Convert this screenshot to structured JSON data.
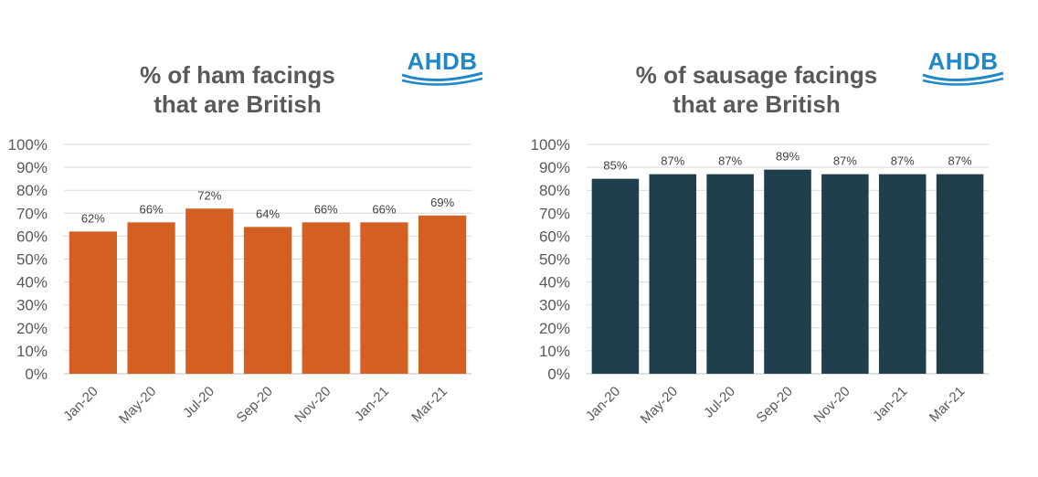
{
  "chart_data": [
    {
      "type": "bar",
      "title_line1": "% of ham facings",
      "title_line2": "that are British",
      "logo": "AHDB",
      "categories": [
        "Jan-20",
        "May-20",
        "Jul-20",
        "Sep-20",
        "Nov-20",
        "Jan-21",
        "Mar-21"
      ],
      "values": [
        62,
        66,
        72,
        64,
        66,
        66,
        69
      ],
      "value_labels": [
        "62%",
        "66%",
        "72%",
        "64%",
        "66%",
        "66%",
        "69%"
      ],
      "yticks": [
        "0%",
        "10%",
        "20%",
        "30%",
        "40%",
        "50%",
        "60%",
        "70%",
        "80%",
        "90%",
        "100%"
      ],
      "ylim": [
        0,
        100
      ],
      "grid": true,
      "color": "#d45f22"
    },
    {
      "type": "bar",
      "title_line1": "% of sausage facings",
      "title_line2": "that are British",
      "logo": "AHDB",
      "categories": [
        "Jan-20",
        "May-20",
        "Jul-20",
        "Sep-20",
        "Nov-20",
        "Jan-21",
        "Mar-21"
      ],
      "values": [
        85,
        87,
        87,
        89,
        87,
        87,
        87
      ],
      "value_labels": [
        "85%",
        "87%",
        "87%",
        "89%",
        "87%",
        "87%",
        "87%"
      ],
      "yticks": [
        "0%",
        "10%",
        "20%",
        "30%",
        "40%",
        "50%",
        "60%",
        "70%",
        "80%",
        "90%",
        "100%"
      ],
      "ylim": [
        0,
        100
      ],
      "grid": true,
      "color": "#1f3f4c"
    }
  ]
}
